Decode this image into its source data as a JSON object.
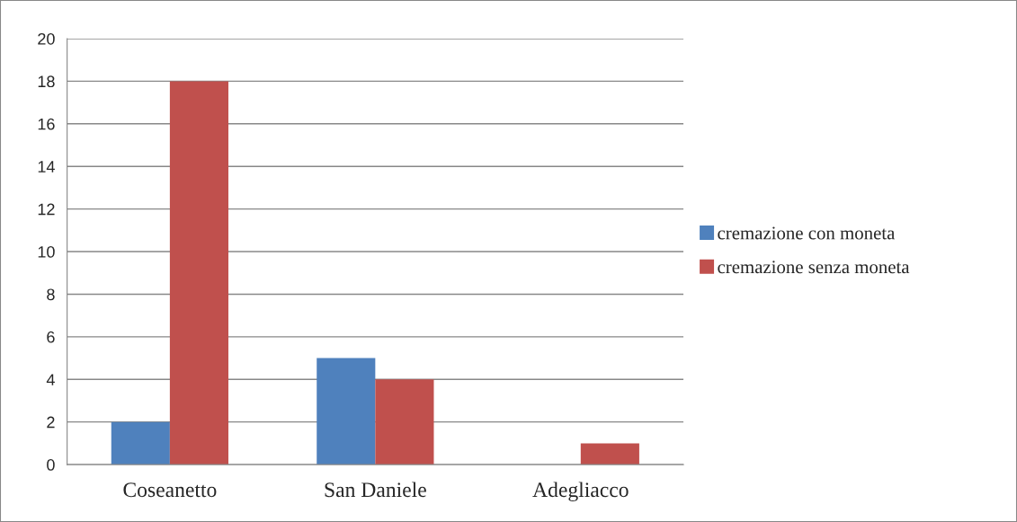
{
  "chart_data": {
    "type": "bar",
    "categories": [
      "Coseanetto",
      "San Daniele",
      "Adegliacco"
    ],
    "series": [
      {
        "name": "cremazione con moneta",
        "color": "#4f81bd",
        "values": [
          2,
          5,
          0
        ]
      },
      {
        "name": "cremazione senza moneta",
        "color": "#c0504d",
        "values": [
          18,
          4,
          1
        ]
      }
    ],
    "ylim": [
      0,
      20
    ],
    "yticks": [
      0,
      2,
      4,
      6,
      8,
      10,
      12,
      14,
      16,
      18,
      20
    ],
    "grid": "y",
    "legend": "right"
  }
}
